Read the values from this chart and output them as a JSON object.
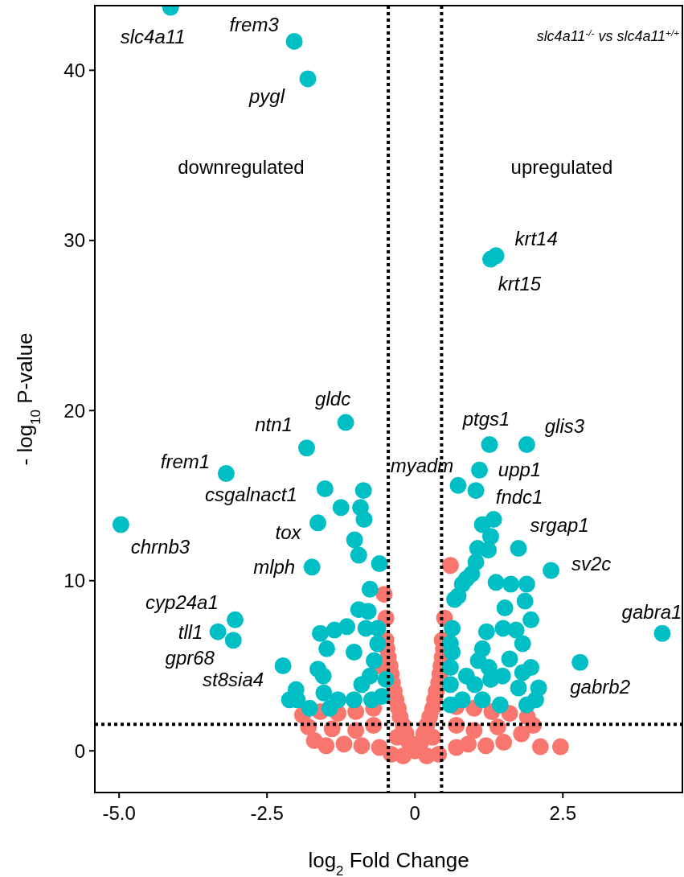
{
  "chart_data": {
    "type": "scatter",
    "xlabel": "log$_{2}$ Fold Change",
    "ylabel": "- log$_{10}$ P-value",
    "xlim": [
      -5.41,
      4.52
    ],
    "ylim": [
      -2.45,
      43.8
    ],
    "xticks": [
      {
        "value": -5,
        "label": "-5.0"
      },
      {
        "value": -2.5,
        "label": "-2.5"
      },
      0,
      2.5
    ],
    "yticks": [
      0,
      10,
      20,
      30,
      40
    ],
    "marker": "circle",
    "ref_lines": [
      {
        "axis": "x",
        "value": -0.45,
        "color": "#000000",
        "line_style": "dotted"
      },
      {
        "axis": "x",
        "value": 0.45,
        "color": "#000000",
        "line_style": "dotted"
      },
      {
        "axis": "y",
        "value": 1.56,
        "color": "#000000",
        "line_style": "dotted"
      }
    ],
    "series": [
      {
        "color": "#f8766d",
        "x": [
          0.6,
          -0.52,
          -0.49,
          0.5,
          -0.49,
          0.46,
          -0.47,
          -0.45,
          -0.42,
          -0.4,
          -0.38,
          -0.35,
          -0.32,
          -0.28,
          -0.25,
          -0.2,
          -0.15,
          -0.1,
          0,
          0.1,
          0.15,
          0.2,
          0.25,
          0.3,
          0.33,
          0.36,
          0.4,
          0.42,
          0.44,
          0.46,
          0.48,
          -1.9,
          -1.6,
          -1.3,
          -1,
          -0.7,
          -1.5,
          -1.2,
          -0.9,
          -1.7,
          -0.6,
          -0.4,
          -0.2,
          0.2,
          0.4,
          0.7,
          0.9,
          1.2,
          1.5,
          1.8,
          2,
          1.9,
          1.6,
          1.3,
          1,
          0.7,
          2.12,
          2.46,
          -0.6,
          -0.3,
          0.3,
          -1,
          1,
          -1.4,
          1.4,
          -1.8,
          0.7,
          -0.7
        ],
        "values": [
          10.9,
          9.2,
          7.8,
          7.8,
          6.5,
          6.5,
          6,
          5.5,
          5,
          4.5,
          4,
          3.5,
          3,
          2.5,
          2,
          1.5,
          1,
          0.5,
          0,
          0.5,
          1,
          1.5,
          2,
          2.5,
          3,
          3.5,
          4,
          4.5,
          5,
          5.5,
          6,
          2.1,
          2.3,
          2.2,
          2.3,
          2.5,
          0.3,
          0.4,
          0.3,
          0.6,
          0.2,
          -0.2,
          -0.3,
          -0.3,
          -0.2,
          0.2,
          0.4,
          0.3,
          0.5,
          1,
          1.5,
          2,
          2.2,
          2.3,
          2.5,
          2.6,
          0.24,
          0.24,
          5,
          0.8,
          0.8,
          1.2,
          1.2,
          1.3,
          1.4,
          1.4,
          1.5,
          1.5
        ]
      },
      {
        "color": "#00bfc4",
        "x": [
          -4.13,
          -2.04,
          -1.81,
          1.37,
          1.28,
          -1.17,
          -1.83,
          -3.19,
          -4.97,
          -1.52,
          -1.64,
          -1.74,
          -3.04,
          -3.33,
          -3.07,
          -2.23,
          1.26,
          1.89,
          1.09,
          0.73,
          1.03,
          1.75,
          2.3,
          4.18,
          2.79,
          -0.87,
          -1.25,
          -0.92,
          -0.86,
          -1.02,
          -0.95,
          -0.6,
          -0.76,
          -0.95,
          -1.6,
          -1.36,
          -1.15,
          -1.49,
          -1.03,
          -1.64,
          -1.55,
          -2.01,
          -1.99,
          -1.54,
          -1.3,
          -1.03,
          -0.9,
          -0.76,
          -0.69,
          -0.63,
          -0.83,
          -0.56,
          -0.73,
          -0.49,
          -0.63,
          -0.79,
          -1.44,
          -1.78,
          -2.12,
          1.33,
          1.14,
          1.28,
          1.06,
          1.24,
          1.03,
          0.96,
          0.8,
          0.87,
          0.67,
          0.73,
          1.37,
          1.62,
          1.89,
          1.86,
          1.52,
          1.96,
          1.49,
          1.21,
          1.71,
          1.82,
          0.63,
          0.63,
          1.14,
          1.07,
          1.25,
          1.6,
          1.82,
          1.96,
          2.09,
          1.75,
          1.48,
          1.28,
          0.87,
          0.6,
          0.8,
          1.14,
          1.44,
          1.89,
          2.04,
          0.6,
          0.6,
          0.6,
          1.01
        ],
        "values": [
          43.7,
          41.7,
          39.5,
          29.1,
          28.9,
          19.3,
          17.8,
          16.3,
          13.3,
          15.4,
          13.4,
          10.8,
          7.7,
          7,
          6.5,
          5,
          18,
          18,
          16.5,
          15.6,
          15.3,
          11.9,
          10.6,
          6.9,
          5.2,
          15.3,
          14.3,
          14.3,
          13.6,
          12.4,
          11.5,
          11,
          9.5,
          8.3,
          6.9,
          7.1,
          7.3,
          6,
          5.8,
          4.8,
          4.4,
          3.6,
          3,
          3.4,
          3,
          3,
          3.9,
          4.4,
          5.3,
          6.3,
          7.2,
          3.2,
          3,
          4.2,
          7.2,
          8.2,
          2.5,
          2.5,
          3,
          13.6,
          13.3,
          12.6,
          11.9,
          11.8,
          11.1,
          10.4,
          9.8,
          10.1,
          8.9,
          9.1,
          9.9,
          9.8,
          9.8,
          8.8,
          8.4,
          7.7,
          7.2,
          7,
          7.1,
          6.3,
          7.2,
          5.8,
          6,
          5.3,
          4.9,
          5.4,
          4.6,
          4.9,
          3.7,
          3.7,
          4.4,
          4.2,
          4.4,
          3.9,
          3,
          3,
          2.7,
          2.7,
          3,
          2.7,
          4.9,
          6.3,
          3.9
        ]
      }
    ],
    "annotations": [
      "slc4a11$^{-/-}$ vs slc4a11$^{+/+}$",
      "downregulated",
      "upregulated",
      {
        "text": "slc4a11",
        "x": -4.13,
        "y": 43.7
      },
      {
        "text": "frem3",
        "x": -2.04,
        "y": 41.7
      },
      {
        "text": "pygl",
        "x": -1.81,
        "y": 39.5
      },
      {
        "text": "krt14",
        "x": 1.37,
        "y": 29.1
      },
      {
        "text": "krt15",
        "x": 1.28,
        "y": 28.9
      },
      {
        "text": "gldc",
        "x": -1.17,
        "y": 19.3
      },
      {
        "text": "ntn1",
        "x": -1.83,
        "y": 17.8
      },
      {
        "text": "frem1",
        "x": -3.19,
        "y": 16.3
      },
      {
        "text": "chrnb3",
        "x": -4.97,
        "y": 13.3
      },
      {
        "text": "csgalnact1",
        "x": -1.52,
        "y": 15.4
      },
      {
        "text": "tox",
        "x": -1.64,
        "y": 13.4
      },
      {
        "text": "mlph",
        "x": -1.74,
        "y": 10.8
      },
      {
        "text": "cyp24a1",
        "x": -3.04,
        "y": 7.7
      },
      {
        "text": "tll1",
        "x": -3.33,
        "y": 7
      },
      {
        "text": "gpr68",
        "x": -3.07,
        "y": 6.5
      },
      {
        "text": "st8sia4",
        "x": -2.23,
        "y": 5
      },
      {
        "text": "ptgs1",
        "x": 1.26,
        "y": 18
      },
      {
        "text": "glis3",
        "x": 1.89,
        "y": 18
      },
      {
        "text": "upp1",
        "x": 1.09,
        "y": 16.5
      },
      {
        "text": "myadm",
        "x": 0.73,
        "y": 15.6
      },
      {
        "text": "fndc1",
        "x": 1.03,
        "y": 15.3
      },
      {
        "text": "srgap1",
        "x": 1.75,
        "y": 11.9
      },
      {
        "text": "sv2c",
        "x": 2.3,
        "y": 10.6
      },
      {
        "text": "gabra1",
        "x": 4.18,
        "y": 6.9
      },
      {
        "text": "gabrb2",
        "x": 2.79,
        "y": 5.2
      }
    ]
  }
}
